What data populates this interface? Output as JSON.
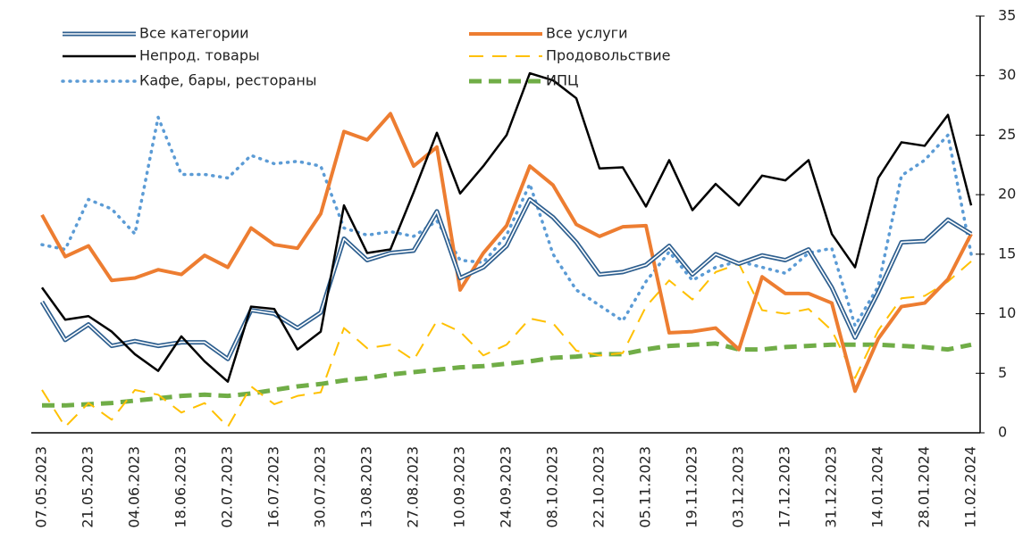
{
  "chart_data": {
    "type": "line",
    "categories": [
      "07.05.2023",
      null,
      "21.05.2023",
      null,
      "04.06.2023",
      null,
      "18.06.2023",
      null,
      "02.07.2023",
      null,
      "16.07.2023",
      null,
      "30.07.2023",
      null,
      "13.08.2023",
      null,
      "27.08.2023",
      null,
      "10.09.2023",
      null,
      "24.09.2023",
      null,
      "08.10.2023",
      null,
      "22.10.2023",
      null,
      "05.11.2023",
      null,
      "19.11.2023",
      null,
      "03.12.2023",
      null,
      "17.12.2023",
      null,
      "31.12.2023",
      null,
      "14.01.2024",
      null,
      "28.01.2024",
      null,
      "11.02.2024"
    ],
    "series": [
      {
        "name": "Все категории",
        "color": "#2e5f8f",
        "values": [
          11.0,
          7.8,
          9.1,
          7.3,
          7.7,
          7.3,
          7.6,
          7.6,
          6.2,
          10.3,
          10.0,
          8.8,
          10.1,
          16.3,
          14.5,
          15.1,
          15.3,
          18.6,
          13.0,
          13.9,
          15.7,
          19.6,
          18.1,
          16.0,
          13.3,
          13.5,
          14.1,
          15.7,
          13.3,
          15.0,
          14.2,
          14.9,
          14.5,
          15.4,
          12.2,
          8.0,
          11.8,
          16.0,
          16.1,
          17.9,
          16.7
        ]
      },
      {
        "name": "Все услуги",
        "color": "#ed7d31",
        "values": [
          18.3,
          14.8,
          15.7,
          12.8,
          13.0,
          13.7,
          13.3,
          14.9,
          13.9,
          17.2,
          15.8,
          15.5,
          18.4,
          25.3,
          24.6,
          26.8,
          22.4,
          24.0,
          12.0,
          15.1,
          17.4,
          22.4,
          20.8,
          17.5,
          16.5,
          17.3,
          17.4,
          8.4,
          8.5,
          8.8,
          7.0,
          13.1,
          11.7,
          11.7,
          10.9,
          3.5,
          7.9,
          10.6,
          10.9,
          12.9,
          16.7
        ]
      },
      {
        "name": "Непрод. товары",
        "color": "#000000",
        "values": [
          12.2,
          9.5,
          9.8,
          8.5,
          6.6,
          5.2,
          8.1,
          6.0,
          4.3,
          10.6,
          10.4,
          7.0,
          8.5,
          19.1,
          15.1,
          15.4,
          20.2,
          25.2,
          20.1,
          22.4,
          25.0,
          30.2,
          29.6,
          28.1,
          22.2,
          22.3,
          19.0,
          22.9,
          18.7,
          20.9,
          19.1,
          21.6,
          21.2,
          22.9,
          16.7,
          13.9,
          21.4,
          24.4,
          24.1,
          26.7,
          19.1
        ]
      },
      {
        "name": "Продовольствие",
        "color": "#ffc000",
        "values": [
          3.6,
          0.5,
          2.5,
          1.1,
          3.6,
          3.2,
          1.7,
          2.5,
          0.5,
          3.9,
          2.4,
          3.1,
          3.4,
          8.8,
          7.1,
          7.4,
          6.1,
          9.4,
          8.5,
          6.5,
          7.4,
          9.6,
          9.2,
          6.9,
          6.5,
          6.7,
          10.6,
          12.8,
          11.2,
          13.5,
          14.2,
          10.3,
          10.0,
          10.4,
          8.6,
          4.6,
          8.6,
          11.3,
          11.5,
          12.7,
          14.4
        ]
      },
      {
        "name": "Кафе, бары, рестораны",
        "color": "#5b9bd5",
        "values": [
          15.8,
          15.4,
          19.6,
          18.8,
          16.7,
          26.5,
          21.7,
          21.7,
          21.4,
          23.3,
          22.6,
          22.8,
          22.4,
          17.2,
          16.6,
          16.9,
          16.5,
          17.8,
          14.5,
          14.3,
          16.6,
          20.9,
          15.0,
          12.0,
          10.7,
          9.4,
          12.7,
          15.2,
          12.8,
          13.9,
          14.4,
          13.9,
          13.4,
          15.1,
          15.5,
          9.0,
          12.3,
          21.6,
          22.9,
          25.0,
          15.0
        ]
      },
      {
        "name": "ИПЦ",
        "color": "#70ad47",
        "values": [
          2.3,
          2.3,
          2.4,
          2.5,
          2.7,
          2.9,
          3.1,
          3.2,
          3.1,
          3.3,
          3.6,
          3.9,
          4.1,
          4.4,
          4.6,
          4.9,
          5.1,
          5.3,
          5.5,
          5.6,
          5.8,
          6.0,
          6.3,
          6.4,
          6.6,
          6.6,
          7.0,
          7.3,
          7.4,
          7.5,
          7.0,
          7.0,
          7.2,
          7.3,
          7.4,
          7.4,
          7.4,
          7.3,
          7.2,
          7.0,
          7.4
        ]
      }
    ],
    "ylim": [
      0,
      35
    ],
    "yticks": [
      0,
      5,
      10,
      15,
      20,
      25,
      30,
      35
    ],
    "legend": "upper left"
  }
}
